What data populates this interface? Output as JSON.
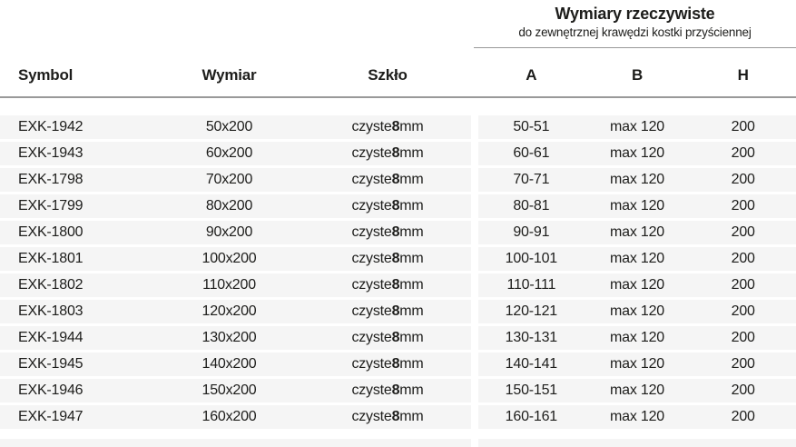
{
  "header": {
    "group_title": "Wymiary rzeczywiste",
    "group_subtitle": "do zewnętrznej krawędzi kostki przyściennej",
    "columns": {
      "symbol": "Symbol",
      "wymiar": "Wymiar",
      "szklo": "Szkło",
      "a": "A",
      "b": "B",
      "h": "H"
    }
  },
  "glass": {
    "pre": "czyste ",
    "bold": "8",
    "post": " mm"
  },
  "rows": [
    {
      "symbol": "EXK-1942",
      "wymiar": "50x200",
      "a": "50-51",
      "b": "max 120",
      "h": "200"
    },
    {
      "symbol": "EXK-1943",
      "wymiar": "60x200",
      "a": "60-61",
      "b": "max 120",
      "h": "200"
    },
    {
      "symbol": "EXK-1798",
      "wymiar": "70x200",
      "a": "70-71",
      "b": "max 120",
      "h": "200"
    },
    {
      "symbol": "EXK-1799",
      "wymiar": "80x200",
      "a": "80-81",
      "b": "max 120",
      "h": "200"
    },
    {
      "symbol": "EXK-1800",
      "wymiar": "90x200",
      "a": "90-91",
      "b": "max 120",
      "h": "200"
    },
    {
      "symbol": "EXK-1801",
      "wymiar": "100x200",
      "a": "100-101",
      "b": "max 120",
      "h": "200"
    },
    {
      "symbol": "EXK-1802",
      "wymiar": "110x200",
      "a": "110-111",
      "b": "max 120",
      "h": "200"
    },
    {
      "symbol": "EXK-1803",
      "wymiar": "120x200",
      "a": "120-121",
      "b": "max 120",
      "h": "200"
    },
    {
      "symbol": "EXK-1944",
      "wymiar": "130x200",
      "a": "130-131",
      "b": "max 120",
      "h": "200"
    },
    {
      "symbol": "EXK-1945",
      "wymiar": "140x200",
      "a": "140-141",
      "b": "max 120",
      "h": "200"
    },
    {
      "symbol": "EXK-1946",
      "wymiar": "150x200",
      "a": "150-151",
      "b": "max 120",
      "h": "200"
    },
    {
      "symbol": "EXK-1947",
      "wymiar": "160x200",
      "a": "160-161",
      "b": "max 120",
      "h": "200"
    }
  ],
  "colors": {
    "text": "#1d1d1b",
    "line": "#999999",
    "row_bg": "#f5f5f5"
  }
}
